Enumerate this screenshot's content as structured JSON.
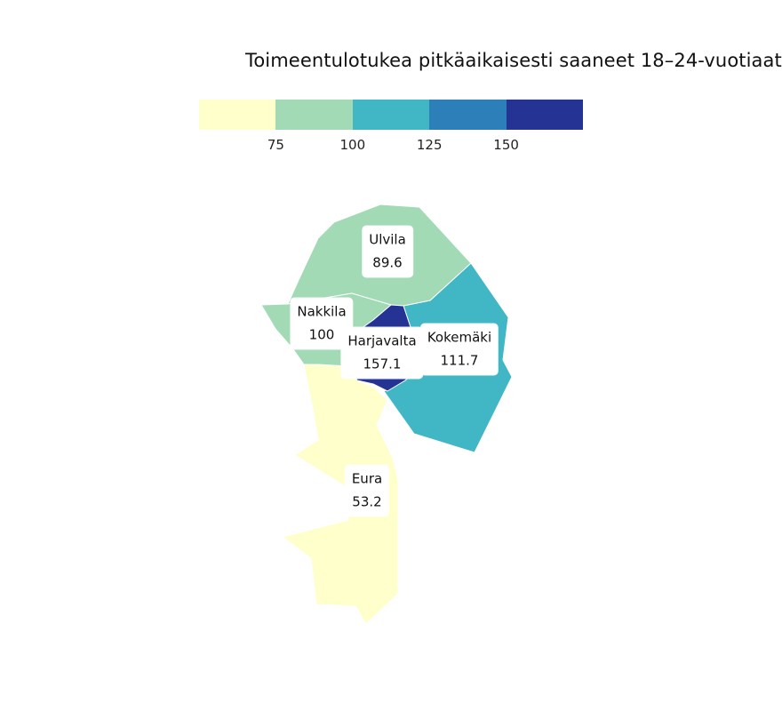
{
  "title": "Toimeentulotukea pitkäaikaisesti saaneet 18–24-vuotiaat",
  "legend": {
    "thresholds": [
      "75",
      "100",
      "125",
      "150"
    ],
    "bins": [
      {
        "color": "#ffffcc"
      },
      {
        "color": "#a1dab4"
      },
      {
        "color": "#41b6c4"
      },
      {
        "color": "#2c7fb8"
      },
      {
        "color": "#253494"
      }
    ]
  },
  "regions": [
    {
      "name": "Ulvila",
      "value": "89.6",
      "color": "#a1dab4"
    },
    {
      "name": "Nakkila",
      "value": "100",
      "color": "#a1dab4"
    },
    {
      "name": "Harjavalta",
      "value": "157.1",
      "color": "#253494"
    },
    {
      "name": "Kokemäki",
      "value": "111.7",
      "color": "#41b6c4"
    },
    {
      "name": "Eura",
      "value": "53.2",
      "color": "#ffffcc"
    }
  ]
}
